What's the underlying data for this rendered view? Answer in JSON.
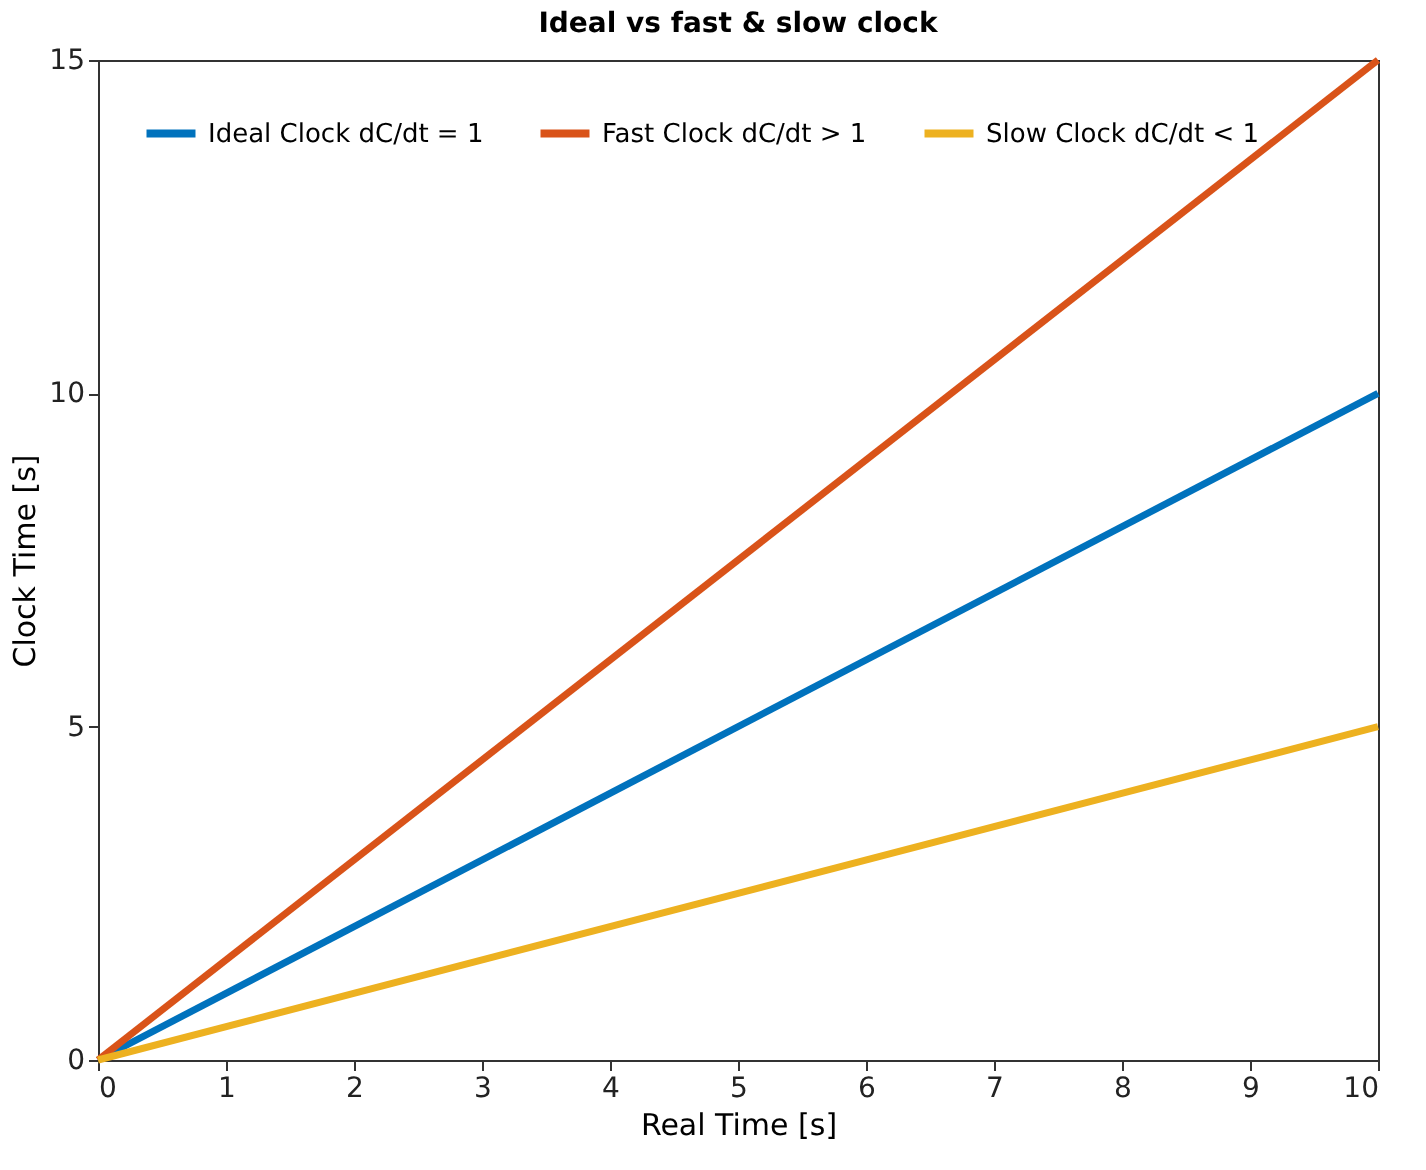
{
  "chart_data": {
    "type": "line",
    "title": "Ideal vs fast & slow clock",
    "xlabel": "Real Time [s]",
    "ylabel": "Clock Time [s]",
    "x": [
      0,
      10
    ],
    "series": [
      {
        "name": "Ideal Clock dC/dt = 1",
        "color": "#0072bd",
        "values": [
          0,
          10
        ]
      },
      {
        "name": "Fast Clock dC/dt > 1",
        "color": "#d95319",
        "values": [
          0,
          15
        ]
      },
      {
        "name": "Slow Clock dC/dt < 1",
        "color": "#edb120",
        "values": [
          0,
          5
        ]
      }
    ],
    "xlim": [
      0,
      10
    ],
    "ylim": [
      0,
      15
    ],
    "xticks": [
      0,
      1,
      2,
      3,
      4,
      5,
      6,
      7,
      8,
      9,
      10
    ],
    "yticks": [
      0,
      5,
      10,
      15
    ],
    "grid": false,
    "legend": "top left",
    "marker": "none",
    "line_style": "solid"
  }
}
